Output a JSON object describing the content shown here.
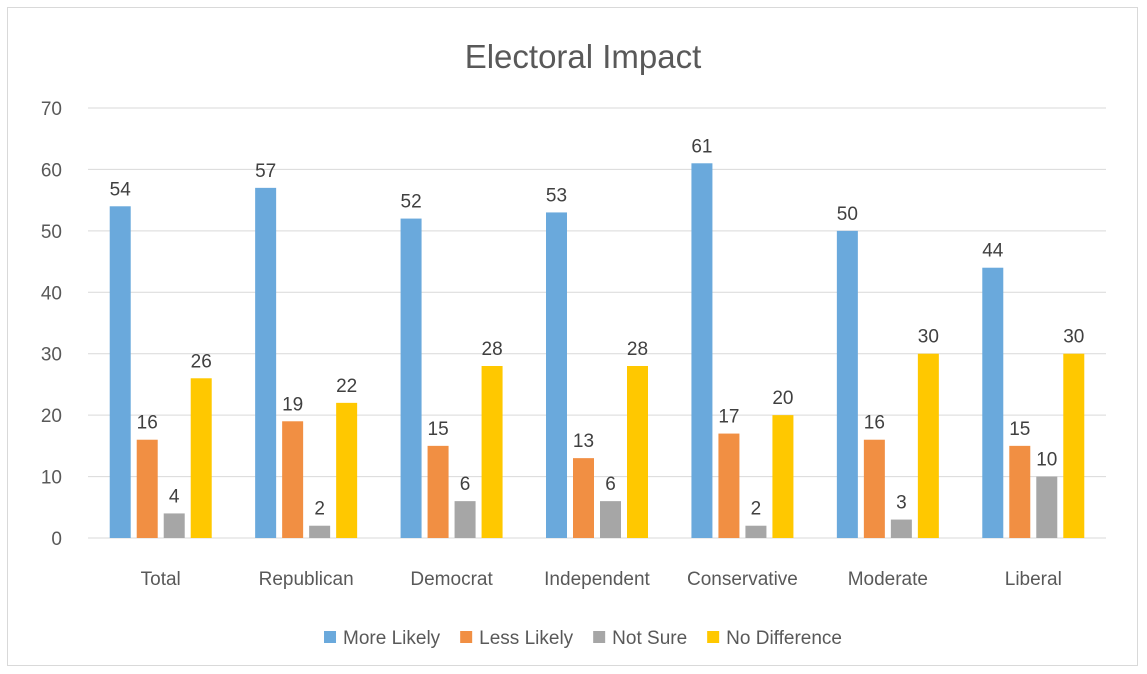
{
  "chart_data": {
    "type": "bar",
    "title": "Electoral Impact",
    "xlabel": "",
    "ylabel": "",
    "ylim": [
      0,
      70
    ],
    "yticks": [
      0,
      10,
      20,
      30,
      40,
      50,
      60,
      70
    ],
    "grid": true,
    "legend_position": "bottom",
    "categories": [
      "Total",
      "Republican",
      "Democrat",
      "Independent",
      "Conservative",
      "Moderate",
      "Liberal"
    ],
    "series": [
      {
        "name": "More Likely",
        "color": "#6aa9dc",
        "values": [
          54,
          57,
          52,
          53,
          61,
          50,
          44
        ]
      },
      {
        "name": "Less Likely",
        "color": "#f18f43",
        "values": [
          16,
          19,
          15,
          13,
          17,
          16,
          15
        ]
      },
      {
        "name": "Not Sure",
        "color": "#a6a6a6",
        "values": [
          4,
          2,
          6,
          6,
          2,
          3,
          10
        ]
      },
      {
        "name": "No Difference",
        "color": "#ffc800",
        "values": [
          26,
          22,
          28,
          28,
          20,
          30,
          30
        ]
      }
    ]
  }
}
